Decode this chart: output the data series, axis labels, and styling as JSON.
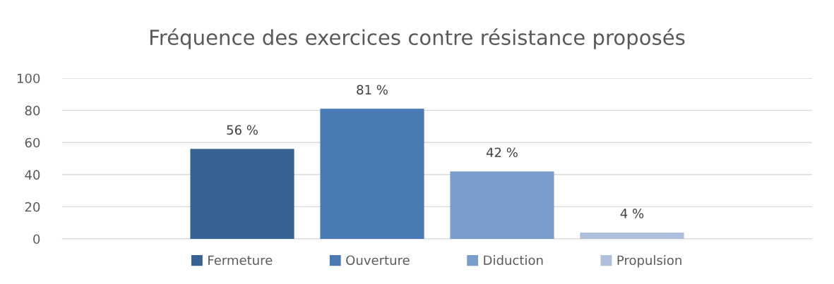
{
  "chart_data": {
    "type": "bar",
    "title": "Fréquence des exercices contre résistance proposés",
    "categories": [
      null
    ],
    "series": [
      {
        "name": "Fermeture",
        "color": "#376294",
        "values": [
          56
        ],
        "value_labels": [
          "56 %"
        ]
      },
      {
        "name": "Ouverture",
        "color": "#4a7ab4",
        "values": [
          81
        ],
        "value_labels": [
          "81 %"
        ]
      },
      {
        "name": "Diduction",
        "color": "#7b9dcb",
        "values": [
          42
        ],
        "value_labels": [
          "42 %"
        ]
      },
      {
        "name": "Propulsion",
        "color": "#adbfdd",
        "values": [
          4
        ],
        "value_labels": [
          "4 %"
        ]
      }
    ],
    "ylim": [
      0,
      100
    ],
    "yticks": [
      0,
      20,
      40,
      60,
      80,
      100
    ],
    "grid": "y",
    "legend": "bottom"
  }
}
